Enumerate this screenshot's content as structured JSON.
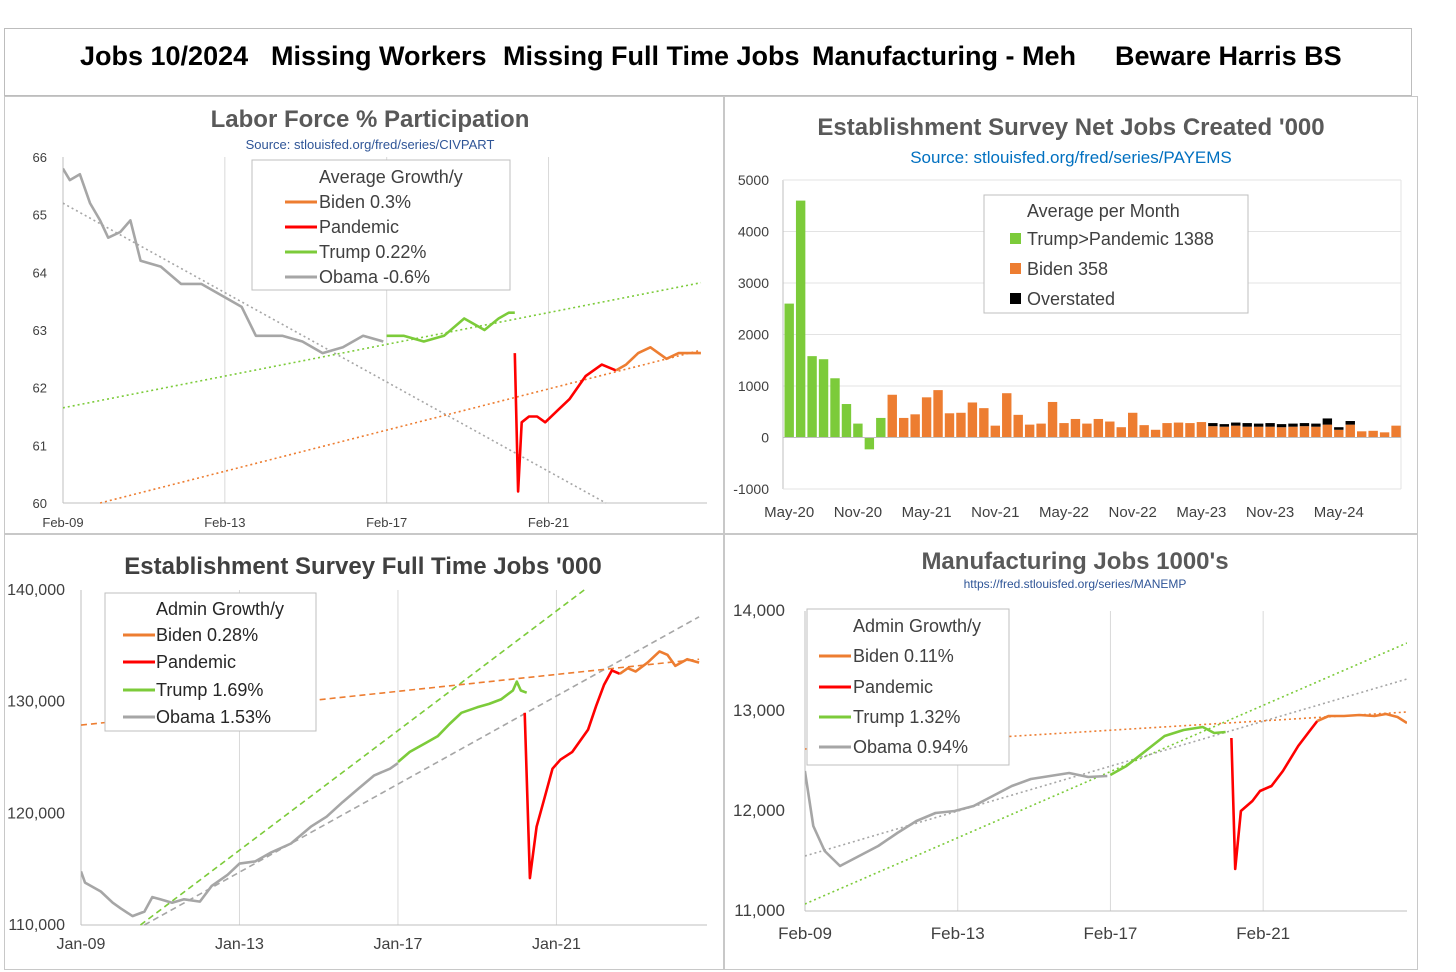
{
  "banner": {
    "seg1": "Jobs 10/2024",
    "seg2": "Missing Workers",
    "seg3": "Missing Full Time Jobs",
    "seg4": "Manufacturing - Meh",
    "seg5": "Beware Harris BS"
  },
  "colors": {
    "biden": "#ED7D31",
    "pandemic": "#FF0000",
    "trump": "#7CCB3A",
    "obama": "#A6A6A6",
    "overstated": "#000000",
    "source": "#2F5597",
    "title": "#595959"
  },
  "chart_data": [
    {
      "id": "labor-force",
      "type": "line",
      "title": "Labor Force % Participation",
      "subtitle": "Source: stlouisfed.org/fred/series/CIVPART",
      "x_tick_labels": [
        "Feb-09",
        "Feb-13",
        "Feb-17",
        "Feb-21"
      ],
      "x_tick_values": [
        2009.083,
        2013.083,
        2017.083,
        2021.083
      ],
      "xlim": [
        2009.083,
        2025.0
      ],
      "y_tick_labels": [
        "60",
        "61",
        "62",
        "63",
        "64",
        "65",
        "66"
      ],
      "ylim": [
        60,
        66
      ],
      "legend": {
        "title": "Average Growth/y",
        "entries": [
          "Biden 0.3%",
          "Pandemic",
          "Trump 0.22%",
          "Obama -0.6%"
        ]
      },
      "series": [
        {
          "name": "Obama",
          "color": "obama",
          "points": [
            [
              2009.08,
              65.8
            ],
            [
              2009.25,
              65.6
            ],
            [
              2009.5,
              65.7
            ],
            [
              2009.75,
              65.2
            ],
            [
              2010.0,
              64.9
            ],
            [
              2010.2,
              64.6
            ],
            [
              2010.5,
              64.7
            ],
            [
              2010.75,
              64.9
            ],
            [
              2011.0,
              64.2
            ],
            [
              2011.5,
              64.1
            ],
            [
              2012.0,
              63.8
            ],
            [
              2012.5,
              63.8
            ],
            [
              2013.0,
              63.6
            ],
            [
              2013.5,
              63.4
            ],
            [
              2013.85,
              62.9
            ],
            [
              2014.5,
              62.9
            ],
            [
              2015.0,
              62.8
            ],
            [
              2015.5,
              62.6
            ],
            [
              2016.0,
              62.7
            ],
            [
              2016.5,
              62.9
            ],
            [
              2017.0,
              62.8
            ]
          ]
        },
        {
          "name": "Trump",
          "color": "trump",
          "points": [
            [
              2017.08,
              62.9
            ],
            [
              2017.5,
              62.9
            ],
            [
              2018.0,
              62.8
            ],
            [
              2018.5,
              62.9
            ],
            [
              2019.0,
              63.2
            ],
            [
              2019.5,
              63.0
            ],
            [
              2019.85,
              63.2
            ],
            [
              2020.1,
              63.3
            ],
            [
              2020.25,
              63.3
            ]
          ]
        },
        {
          "name": "Pandemic",
          "color": "pandemic",
          "points": [
            [
              2020.25,
              62.6
            ],
            [
              2020.33,
              60.2
            ],
            [
              2020.42,
              61.4
            ],
            [
              2020.6,
              61.5
            ],
            [
              2020.8,
              61.5
            ],
            [
              2021.0,
              61.4
            ],
            [
              2021.3,
              61.6
            ],
            [
              2021.6,
              61.8
            ],
            [
              2022.0,
              62.2
            ],
            [
              2022.4,
              62.4
            ],
            [
              2022.75,
              62.3
            ]
          ]
        },
        {
          "name": "Biden",
          "color": "biden",
          "points": [
            [
              2022.75,
              62.3
            ],
            [
              2023.0,
              62.4
            ],
            [
              2023.3,
              62.6
            ],
            [
              2023.6,
              62.7
            ],
            [
              2024.0,
              62.5
            ],
            [
              2024.3,
              62.6
            ],
            [
              2024.6,
              62.6
            ],
            [
              2024.85,
              62.6
            ]
          ]
        }
      ],
      "trendlines": [
        {
          "name": "Obama trend",
          "color": "obama",
          "points": [
            [
              2009.08,
              65.2
            ],
            [
              2022.5,
              60.0
            ]
          ]
        },
        {
          "name": "Trump trend",
          "color": "trump",
          "points": [
            [
              2009.08,
              61.65
            ],
            [
              2024.85,
              63.82
            ]
          ]
        },
        {
          "name": "Biden trend",
          "color": "biden",
          "points": [
            [
              2010.0,
              60.0
            ],
            [
              2024.85,
              62.65
            ]
          ]
        }
      ]
    },
    {
      "id": "net-jobs",
      "type": "bar",
      "title": "Establishment Survey Net Jobs Created '000",
      "subtitle": "Source:  stlouisfed.org/fred/series/PAYEMS",
      "x_tick_labels": [
        "May-20",
        "Nov-20",
        "May-21",
        "Nov-21",
        "May-22",
        "Nov-22",
        "May-23",
        "Nov-23",
        "May-24"
      ],
      "x_tick_index": [
        0,
        6,
        12,
        18,
        24,
        30,
        36,
        42,
        48
      ],
      "y_tick_labels": [
        "-1000",
        "0",
        "1000",
        "2000",
        "3000",
        "4000",
        "5000"
      ],
      "ylim": [
        -1000,
        5000
      ],
      "legend": {
        "title": "Average per Month",
        "entries": [
          "Trump>Pandemic 1388",
          "Biden 358",
          "Overstated"
        ]
      },
      "categories_count": 54,
      "trump_count": 9,
      "values": [
        2600,
        4600,
        1580,
        1520,
        1150,
        650,
        270,
        -230,
        380,
        830,
        380,
        450,
        780,
        920,
        470,
        480,
        680,
        570,
        230,
        860,
        440,
        250,
        270,
        690,
        280,
        360,
        270,
        360,
        310,
        200,
        480,
        240,
        150,
        280,
        290,
        280,
        300,
        220,
        210,
        230,
        210,
        210,
        210,
        200,
        210,
        220,
        210,
        250,
        150,
        250,
        120,
        130,
        100,
        230
      ],
      "overstated": [
        0,
        0,
        0,
        0,
        0,
        0,
        0,
        0,
        0,
        0,
        0,
        0,
        0,
        0,
        0,
        0,
        0,
        0,
        0,
        0,
        0,
        0,
        0,
        0,
        0,
        0,
        0,
        0,
        0,
        0,
        0,
        0,
        0,
        0,
        0,
        0,
        0,
        60,
        50,
        60,
        70,
        60,
        70,
        60,
        60,
        60,
        60,
        120,
        50,
        70,
        0,
        0,
        0,
        0
      ]
    },
    {
      "id": "full-time",
      "type": "line",
      "title": "Establishment Survey Full Time Jobs '000",
      "x_tick_labels": [
        "Jan-09",
        "Jan-13",
        "Jan-17",
        "Jan-21"
      ],
      "x_tick_values": [
        2009.0,
        2013.0,
        2017.0,
        2021.0
      ],
      "xlim": [
        2009.0,
        2024.8
      ],
      "y_tick_labels": [
        "110,000",
        "120,000",
        "130,000",
        "140,000"
      ],
      "ylim": [
        110000,
        140000
      ],
      "legend": {
        "title": "Admin Growth/y",
        "entries": [
          "Biden 0.28%",
          "Pandemic",
          "Trump 1.69%",
          "Obama 1.53%"
        ]
      },
      "series": [
        {
          "name": "Obama",
          "color": "obama",
          "points": [
            [
              2009.0,
              114800
            ],
            [
              2009.1,
              113800
            ],
            [
              2009.5,
              113000
            ],
            [
              2009.8,
              112000
            ],
            [
              2010.0,
              111500
            ],
            [
              2010.3,
              110800
            ],
            [
              2010.6,
              111200
            ],
            [
              2010.8,
              112500
            ],
            [
              2011.0,
              112300
            ],
            [
              2011.3,
              112000
            ],
            [
              2011.6,
              112300
            ],
            [
              2012.0,
              112100
            ],
            [
              2012.3,
              113500
            ],
            [
              2012.7,
              114500
            ],
            [
              2013.0,
              115500
            ],
            [
              2013.4,
              115700
            ],
            [
              2013.8,
              116500
            ],
            [
              2014.3,
              117300
            ],
            [
              2014.8,
              118800
            ],
            [
              2015.2,
              119700
            ],
            [
              2015.6,
              121000
            ],
            [
              2016.0,
              122200
            ],
            [
              2016.4,
              123400
            ],
            [
              2016.8,
              124000
            ],
            [
              2017.0,
              124500
            ]
          ]
        },
        {
          "name": "Trump",
          "color": "trump",
          "points": [
            [
              2017.0,
              124600
            ],
            [
              2017.3,
              125500
            ],
            [
              2017.7,
              126300
            ],
            [
              2018.0,
              126900
            ],
            [
              2018.3,
              128000
            ],
            [
              2018.6,
              129000
            ],
            [
              2019.0,
              129500
            ],
            [
              2019.3,
              129800
            ],
            [
              2019.6,
              130200
            ],
            [
              2019.9,
              131000
            ],
            [
              2020.0,
              131800
            ],
            [
              2020.1,
              131000
            ],
            [
              2020.25,
              130800
            ]
          ]
        },
        {
          "name": "Pandemic",
          "color": "pandemic",
          "points": [
            [
              2020.2,
              129000
            ],
            [
              2020.33,
              114200
            ],
            [
              2020.5,
              118800
            ],
            [
              2020.7,
              121400
            ],
            [
              2020.9,
              124000
            ],
            [
              2021.1,
              124800
            ],
            [
              2021.4,
              125500
            ],
            [
              2021.6,
              126500
            ],
            [
              2021.8,
              127500
            ],
            [
              2022.0,
              129600
            ],
            [
              2022.2,
              131500
            ],
            [
              2022.4,
              132800
            ],
            [
              2022.6,
              132500
            ]
          ]
        },
        {
          "name": "Biden",
          "color": "biden",
          "points": [
            [
              2022.6,
              132500
            ],
            [
              2022.8,
              133000
            ],
            [
              2023.0,
              132700
            ],
            [
              2023.3,
              133500
            ],
            [
              2023.6,
              134500
            ],
            [
              2023.8,
              134200
            ],
            [
              2024.0,
              133200
            ],
            [
              2024.3,
              133800
            ],
            [
              2024.6,
              133500
            ]
          ]
        }
      ],
      "trendlines": [
        {
          "name": "Trump trend",
          "color": "trump",
          "points": [
            [
              2010.5,
              110000
            ],
            [
              2021.7,
              140000
            ]
          ]
        },
        {
          "name": "Obama trend",
          "color": "obama",
          "points": [
            [
              2010.6,
              110000
            ],
            [
              2024.6,
              137600
            ]
          ]
        },
        {
          "name": "Biden trend",
          "color": "biden",
          "points": [
            [
              2009.0,
              127900
            ],
            [
              2024.6,
              133800
            ]
          ]
        }
      ]
    },
    {
      "id": "manufacturing",
      "type": "line",
      "title": "Manufacturing Jobs 1000's",
      "subtitle": "https://fred.stlouisfed.org/series/MANEMP",
      "x_tick_labels": [
        "Feb-09",
        "Feb-13",
        "Feb-17",
        "Feb-21"
      ],
      "x_tick_values": [
        2009.083,
        2013.083,
        2017.083,
        2021.083
      ],
      "xlim": [
        2009.083,
        2024.85
      ],
      "y_tick_labels": [
        "11,000",
        "12,000",
        "13,000",
        "14,000"
      ],
      "ylim": [
        11000,
        14000
      ],
      "legend": {
        "title": "Admin  Growth/y",
        "entries": [
          "Biden 0.11%",
          "Pandemic",
          "Trump 1.32%",
          "Obama 0.94%"
        ]
      },
      "series": [
        {
          "name": "Obama",
          "color": "obama",
          "points": [
            [
              2009.08,
              12400
            ],
            [
              2009.3,
              11850
            ],
            [
              2009.6,
              11600
            ],
            [
              2010.0,
              11450
            ],
            [
              2010.5,
              11550
            ],
            [
              2011.0,
              11650
            ],
            [
              2011.5,
              11780
            ],
            [
              2012.0,
              11900
            ],
            [
              2012.5,
              11980
            ],
            [
              2013.0,
              12000
            ],
            [
              2013.5,
              12050
            ],
            [
              2014.0,
              12150
            ],
            [
              2014.5,
              12250
            ],
            [
              2015.0,
              12320
            ],
            [
              2015.5,
              12350
            ],
            [
              2016.0,
              12380
            ],
            [
              2016.5,
              12340
            ],
            [
              2017.0,
              12350
            ]
          ]
        },
        {
          "name": "Trump",
          "color": "trump",
          "points": [
            [
              2017.08,
              12360
            ],
            [
              2017.5,
              12450
            ],
            [
              2018.0,
              12600
            ],
            [
              2018.5,
              12750
            ],
            [
              2019.0,
              12810
            ],
            [
              2019.5,
              12840
            ],
            [
              2019.8,
              12780
            ],
            [
              2020.1,
              12790
            ]
          ]
        },
        {
          "name": "Pandemic",
          "color": "pandemic",
          "points": [
            [
              2020.25,
              12730
            ],
            [
              2020.35,
              11420
            ],
            [
              2020.5,
              12000
            ],
            [
              2020.8,
              12100
            ],
            [
              2021.0,
              12200
            ],
            [
              2021.3,
              12250
            ],
            [
              2021.6,
              12400
            ],
            [
              2022.0,
              12650
            ],
            [
              2022.3,
              12800
            ],
            [
              2022.5,
              12900
            ]
          ]
        },
        {
          "name": "Biden",
          "color": "biden",
          "points": [
            [
              2022.5,
              12900
            ],
            [
              2022.8,
              12950
            ],
            [
              2023.2,
              12950
            ],
            [
              2023.6,
              12960
            ],
            [
              2024.0,
              12950
            ],
            [
              2024.3,
              12970
            ],
            [
              2024.6,
              12940
            ],
            [
              2024.85,
              12880
            ]
          ]
        }
      ],
      "trendlines": [
        {
          "name": "Trump trend",
          "color": "trump",
          "points": [
            [
              2009.08,
              11070
            ],
            [
              2024.85,
              13680
            ]
          ]
        },
        {
          "name": "Obama trend",
          "color": "obama",
          "points": [
            [
              2009.08,
              11550
            ],
            [
              2024.85,
              13320
            ]
          ]
        },
        {
          "name": "Biden trend",
          "color": "biden",
          "points": [
            [
              2009.08,
              12620
            ],
            [
              2024.85,
              12990
            ]
          ]
        }
      ]
    }
  ]
}
